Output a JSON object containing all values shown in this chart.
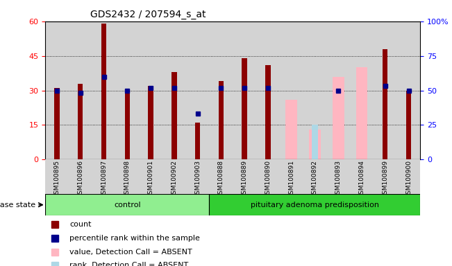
{
  "title": "GDS2432 / 207594_s_at",
  "samples": [
    "GSM100895",
    "GSM100896",
    "GSM100897",
    "GSM100898",
    "GSM100901",
    "GSM100902",
    "GSM100903",
    "GSM100888",
    "GSM100889",
    "GSM100890",
    "GSM100891",
    "GSM100892",
    "GSM100893",
    "GSM100894",
    "GSM100899",
    "GSM100900"
  ],
  "groups": [
    "control",
    "control",
    "control",
    "control",
    "control",
    "control",
    "control",
    "pituitary adenoma predisposition",
    "pituitary adenoma predisposition",
    "pituitary adenoma predisposition",
    "pituitary adenoma predisposition",
    "pituitary adenoma predisposition",
    "pituitary adenoma predisposition",
    "pituitary adenoma predisposition",
    "pituitary adenoma predisposition",
    "pituitary adenoma predisposition"
  ],
  "red_values": [
    31,
    33,
    59,
    30,
    32,
    38,
    16,
    34,
    44,
    41,
    null,
    null,
    null,
    null,
    48,
    30
  ],
  "blue_values": [
    30,
    29,
    36,
    30,
    31,
    31,
    20,
    31,
    31,
    31,
    null,
    null,
    30,
    null,
    32,
    30
  ],
  "pink_values": [
    null,
    null,
    null,
    null,
    null,
    null,
    null,
    null,
    null,
    null,
    26,
    13,
    36,
    40,
    null,
    null
  ],
  "lightblue_values": [
    null,
    null,
    null,
    null,
    null,
    null,
    null,
    null,
    null,
    null,
    null,
    15,
    null,
    null,
    null,
    null
  ],
  "left_ylim": [
    0,
    60
  ],
  "right_ylim": [
    0,
    100
  ],
  "left_yticks": [
    0,
    15,
    30,
    45,
    60
  ],
  "right_yticks": [
    0,
    25,
    50,
    75,
    100
  ],
  "right_yticklabels": [
    "0",
    "25",
    "50",
    "75",
    "100%"
  ],
  "control_count": 7,
  "bg_color": "#d3d3d3",
  "control_group_color": "#90ee90",
  "pituitary_group_color": "#32cd32",
  "disease_state_label": "disease state",
  "control_label": "control",
  "pituitary_label": "pituitary adenoma predisposition",
  "legend_items": [
    "count",
    "percentile rank within the sample",
    "value, Detection Call = ABSENT",
    "rank, Detection Call = ABSENT"
  ],
  "legend_colors": [
    "#8b0000",
    "#00008b",
    "#ffb6c1",
    "#add8e6"
  ]
}
